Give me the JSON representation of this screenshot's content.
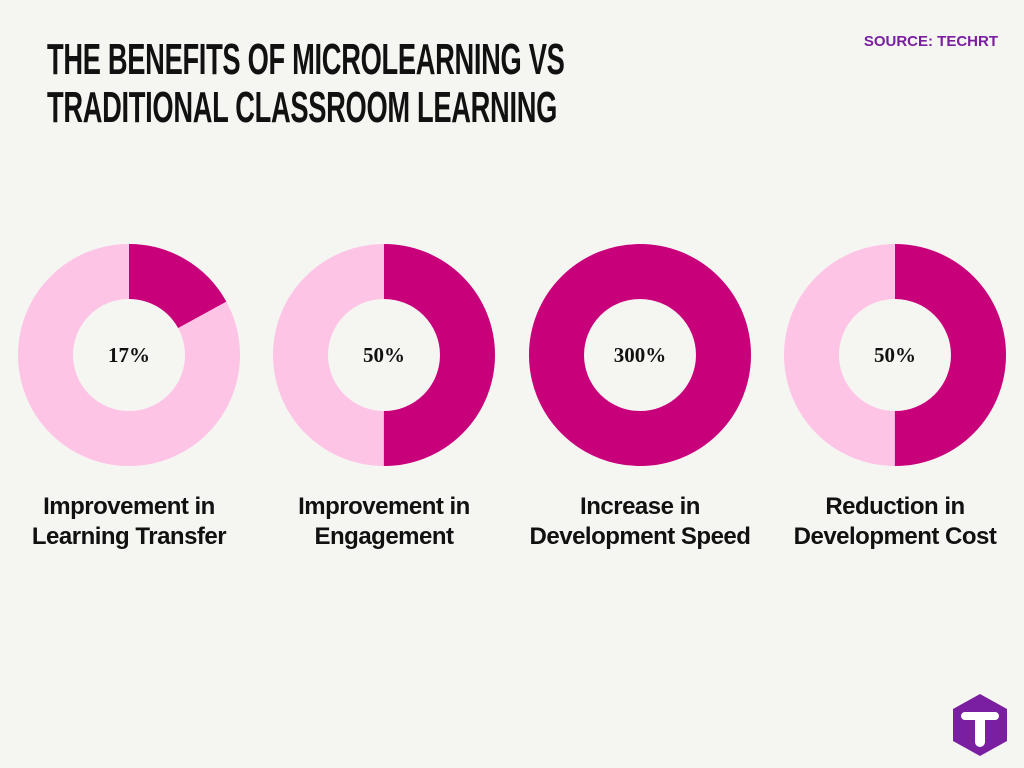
{
  "title": "THE BENEFITS OF MICROLEARNING VS TRADITIONAL CLASSROOM LEARNING",
  "source": "SOURCE: TECHRT",
  "chart_data": [
    {
      "type": "donut",
      "categories": [
        "Improvement in Learning Transfer"
      ],
      "values": [
        17
      ],
      "value_labels": [
        "17%"
      ],
      "ylim": [
        0,
        100
      ],
      "color": "#c8007a",
      "track_color": "#fdc4e6"
    },
    {
      "type": "donut",
      "categories": [
        "Improvement in Engagement"
      ],
      "values": [
        50
      ],
      "value_labels": [
        "50%"
      ],
      "ylim": [
        0,
        100
      ],
      "color": "#c8007a",
      "track_color": "#fdc4e6"
    },
    {
      "type": "donut",
      "categories": [
        "Increase in Development Speed"
      ],
      "values": [
        300
      ],
      "value_labels": [
        "300%"
      ],
      "ylim": [
        0,
        300
      ],
      "color": "#c8007a",
      "track_color": "#fdc4e6"
    },
    {
      "type": "donut",
      "categories": [
        "Reduction in Development Cost"
      ],
      "values": [
        50
      ],
      "value_labels": [
        "50%"
      ],
      "ylim": [
        0,
        100
      ],
      "color": "#c8007a",
      "track_color": "#fdc4e6"
    }
  ]
}
